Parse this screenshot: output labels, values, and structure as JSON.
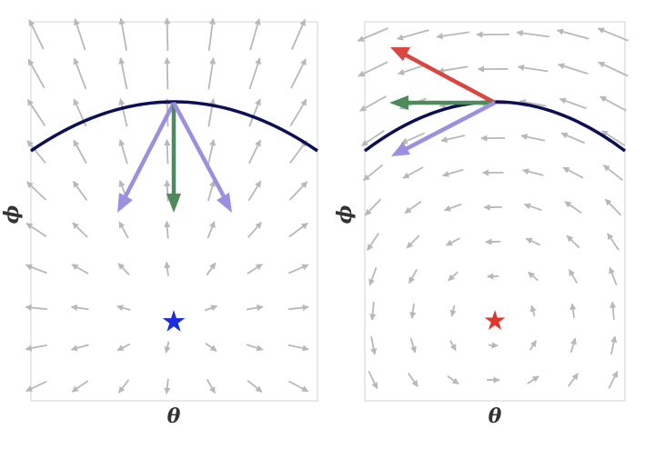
{
  "panels": [
    {
      "id": "left",
      "xlabel": "θ",
      "ylabel": "ϕ",
      "field": "radial-outward",
      "star_color": "#1a2be0",
      "arrows": [
        {
          "name": "purple-arrow-left",
          "color": "#9b8fe0"
        },
        {
          "name": "green-arrow-down",
          "color": "#4f8a5c"
        },
        {
          "name": "purple-arrow-right",
          "color": "#9b8fe0"
        }
      ]
    },
    {
      "id": "right",
      "xlabel": "θ",
      "ylabel": "ϕ",
      "field": "rotational-counterclockwise",
      "star_color": "#e0352b",
      "arrows": [
        {
          "name": "red-arrow-up-left",
          "color": "#d9473f"
        },
        {
          "name": "green-arrow-left",
          "color": "#4f8a5c"
        },
        {
          "name": "purple-arrow-down-left",
          "color": "#9b8fe0"
        }
      ]
    }
  ],
  "colors": {
    "curve": "#0b0f55",
    "field_arrow": "#b8b8b8",
    "frame": "#d2d2d2"
  }
}
